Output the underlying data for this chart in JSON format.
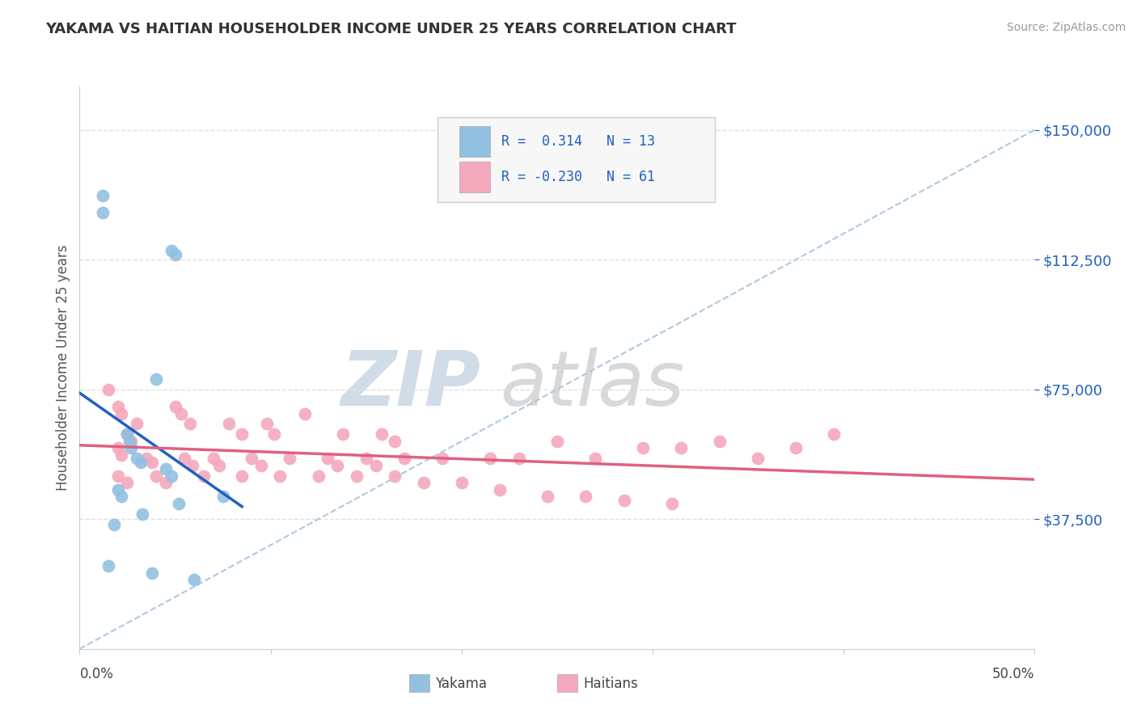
{
  "title": "YAKAMA VS HAITIAN HOUSEHOLDER INCOME UNDER 25 YEARS CORRELATION CHART",
  "source": "Source: ZipAtlas.com",
  "ylabel": "Householder Income Under 25 years",
  "xlim": [
    0.0,
    50.0
  ],
  "ylim": [
    0,
    162500
  ],
  "yticks": [
    37500,
    75000,
    112500,
    150000
  ],
  "ytick_labels": [
    "$37,500",
    "$75,000",
    "$112,500",
    "$150,000"
  ],
  "yakama_color": "#92C0E0",
  "haitian_color": "#F4A8BC",
  "yakama_line_color": "#2060C0",
  "haitian_line_color": "#E06080",
  "ref_line_color": "#B0C8E0",
  "background_color": "#FFFFFF",
  "watermark_zip_color": "#D0DCE8",
  "watermark_atlas_color": "#D8D8D8",
  "legend_face_color": "#F7F7F7",
  "legend_edge_color": "#CCCCCC",
  "legend_text_color": "#2060C0",
  "grid_color": "#E0E0E0",
  "spine_color": "#CCCCCC",
  "title_color": "#333333",
  "source_color": "#999999",
  "ylabel_color": "#555555",
  "xtick_labels": [
    "0.0%",
    "50.0%"
  ],
  "xticks": [
    0,
    50
  ],
  "yakama_points_x": [
    1.2,
    1.2,
    4.8,
    5.0,
    4.0,
    2.5,
    2.6,
    2.7,
    3.0,
    3.2,
    4.5,
    4.8,
    2.0,
    2.2,
    7.5,
    5.2,
    3.3,
    1.8,
    1.5,
    3.8,
    6.0
  ],
  "yakama_points_y": [
    131000,
    126000,
    115000,
    114000,
    78000,
    62000,
    60000,
    58000,
    55000,
    54000,
    52000,
    50000,
    46000,
    44000,
    44000,
    42000,
    39000,
    36000,
    24000,
    22000,
    20000
  ],
  "haitian_points_x": [
    1.5,
    2.0,
    2.2,
    3.0,
    2.5,
    2.7,
    2.0,
    2.2,
    5.0,
    5.3,
    5.8,
    7.8,
    8.5,
    9.8,
    10.2,
    11.8,
    13.8,
    15.8,
    16.5,
    3.5,
    3.8,
    5.5,
    5.9,
    7.0,
    7.3,
    9.0,
    9.5,
    11.0,
    13.0,
    13.5,
    15.0,
    15.5,
    17.0,
    19.0,
    21.5,
    23.0,
    25.0,
    27.0,
    29.5,
    31.5,
    33.5,
    35.5,
    37.5,
    39.5,
    2.0,
    2.5,
    4.0,
    4.5,
    6.5,
    8.5,
    10.5,
    12.5,
    14.5,
    16.5,
    18.0,
    20.0,
    22.0,
    24.5,
    26.5,
    28.5,
    31.0
  ],
  "haitian_points_y": [
    75000,
    70000,
    68000,
    65000,
    62000,
    60000,
    58000,
    56000,
    70000,
    68000,
    65000,
    65000,
    62000,
    65000,
    62000,
    68000,
    62000,
    62000,
    60000,
    55000,
    54000,
    55000,
    53000,
    55000,
    53000,
    55000,
    53000,
    55000,
    55000,
    53000,
    55000,
    53000,
    55000,
    55000,
    55000,
    55000,
    60000,
    55000,
    58000,
    58000,
    60000,
    55000,
    58000,
    62000,
    50000,
    48000,
    50000,
    48000,
    50000,
    50000,
    50000,
    50000,
    50000,
    50000,
    48000,
    48000,
    46000,
    44000,
    44000,
    43000,
    42000
  ]
}
